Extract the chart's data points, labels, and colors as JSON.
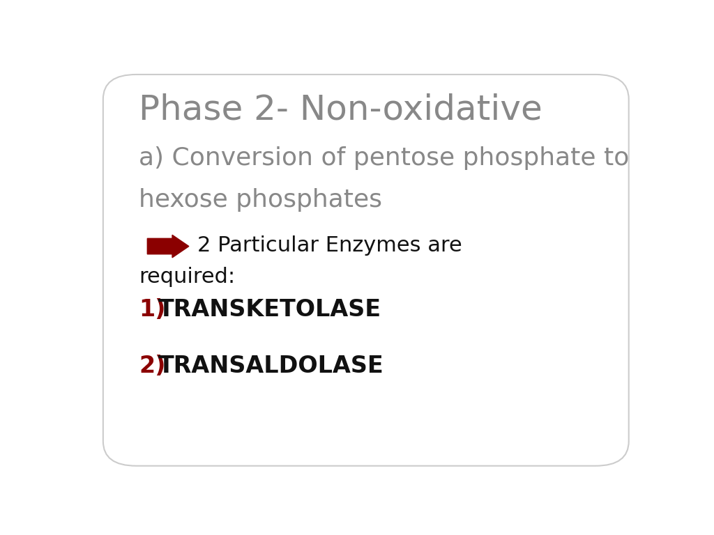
{
  "background_color": "#ffffff",
  "border_color": "#cccccc",
  "title_line1": "Phase 2- Non-oxidative",
  "title_line2": "a) Conversion of pentose phosphate to",
  "title_line3": "hexose phosphates",
  "title_color": "#888888",
  "title1_fontsize": 36,
  "title23_fontsize": 26,
  "arrow_color": "#8b0000",
  "enzyme_intro_line1": "2 Particular Enzymes are",
  "enzyme_intro_line2": "required:",
  "enzyme_intro_color": "#111111",
  "enzyme_intro_fontsize": 22,
  "enzyme1_full": "1)TRANSKETOLASE",
  "enzyme2_full": "2)TRANSALDOLASE",
  "enzyme1_label": "1)",
  "enzyme1_name": "TRANSKETOLASE",
  "enzyme2_label": "2)",
  "enzyme2_name": "TRANSALDOLASE",
  "enzyme_label_color": "#8b0000",
  "enzyme_name_color": "#111111",
  "enzyme_fontsize": 24
}
